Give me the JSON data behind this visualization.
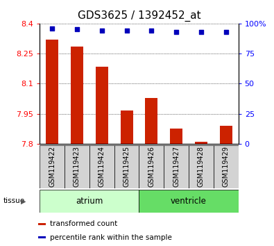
{
  "title": "GDS3625 / 1392452_at",
  "samples": [
    "GSM119422",
    "GSM119423",
    "GSM119424",
    "GSM119425",
    "GSM119426",
    "GSM119427",
    "GSM119428",
    "GSM119429"
  ],
  "transformed_count": [
    8.32,
    8.285,
    8.185,
    7.965,
    8.03,
    7.875,
    7.81,
    7.89
  ],
  "percentile_rank": [
    96,
    95,
    94,
    94,
    94,
    93,
    93,
    93
  ],
  "ylim_left": [
    7.8,
    8.4
  ],
  "ylim_right": [
    0,
    100
  ],
  "yticks_left": [
    7.8,
    7.95,
    8.1,
    8.25,
    8.4
  ],
  "yticks_right": [
    0,
    25,
    50,
    75,
    100
  ],
  "ytick_labels_left": [
    "7.8",
    "7.95",
    "8.1",
    "8.25",
    "8.4"
  ],
  "ytick_labels_right": [
    "0",
    "25",
    "50",
    "75",
    "100%"
  ],
  "bar_color": "#cc2200",
  "dot_color": "#0000bb",
  "bar_width": 0.5,
  "tissue_groups": [
    {
      "label": "atrium",
      "start": 0,
      "end": 3,
      "color": "#ccffcc"
    },
    {
      "label": "ventricle",
      "start": 4,
      "end": 7,
      "color": "#66dd66"
    }
  ],
  "tissue_label": "tissue",
  "legend_entries": [
    {
      "color": "#cc2200",
      "label": "transformed count"
    },
    {
      "color": "#0000bb",
      "label": "percentile rank within the sample"
    }
  ],
  "background_color": "#ffffff",
  "title_fontsize": 11,
  "tick_fontsize": 8,
  "label_fontsize": 7,
  "legend_fontsize": 7.5
}
